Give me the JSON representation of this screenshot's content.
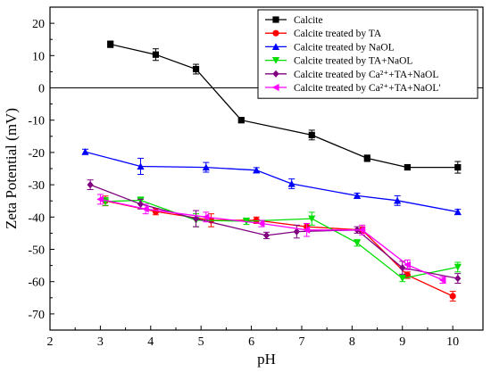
{
  "chart_data": {
    "type": "line",
    "xlabel": "pH",
    "ylabel": "Zeta Potential (mV)",
    "xlim": [
      2,
      10.6
    ],
    "ylim": [
      -75,
      25
    ],
    "xticks": [
      2,
      3,
      4,
      5,
      6,
      7,
      8,
      9,
      10
    ],
    "yticks": [
      20,
      10,
      0,
      -10,
      -20,
      -30,
      -40,
      -50,
      -60,
      -70
    ],
    "zero_line": true,
    "legend_position": "top-right",
    "series": [
      {
        "name": "Calcite",
        "color": "#000000",
        "marker": "square",
        "x": [
          3.2,
          4.1,
          4.9,
          5.8,
          7.2,
          8.3,
          9.1,
          10.1
        ],
        "y": [
          13.5,
          10.3,
          5.8,
          -10.0,
          -14.6,
          -21.8,
          -24.6,
          -24.6
        ],
        "err": [
          1.0,
          1.8,
          1.5,
          0.8,
          1.5,
          1.0,
          0.8,
          1.8
        ]
      },
      {
        "name": "Calcite treated by TA",
        "color": "#ff0000",
        "marker": "circle",
        "x": [
          3.1,
          4.1,
          5.2,
          6.1,
          7.1,
          8.2,
          9.1,
          10.0
        ],
        "y": [
          -35.0,
          -38.3,
          -41.0,
          -41.0,
          -43.0,
          -44.0,
          -58.0,
          -64.5
        ],
        "err": [
          1.5,
          1.0,
          2.0,
          1.0,
          1.0,
          1.0,
          1.0,
          1.5
        ]
      },
      {
        "name": "Calcite treated by NaOL",
        "color": "#0000ff",
        "marker": "triangle-up",
        "x": [
          2.7,
          3.8,
          5.1,
          6.1,
          6.8,
          8.1,
          8.9,
          10.1
        ],
        "y": [
          -19.8,
          -24.3,
          -24.6,
          -25.5,
          -29.7,
          -33.4,
          -34.9,
          -38.4
        ],
        "err": [
          0.8,
          2.5,
          1.5,
          0.8,
          1.5,
          0.8,
          1.5,
          0.8
        ]
      },
      {
        "name": "Calcite treated by TA+NaOL",
        "color": "#00dd00",
        "marker": "triangle-down",
        "x": [
          3.1,
          3.8,
          4.9,
          5.9,
          7.2,
          8.1,
          9.0,
          10.1
        ],
        "y": [
          -35.2,
          -34.8,
          -41.0,
          -41.3,
          -40.5,
          -48.0,
          -59.0,
          -55.5
        ],
        "err": [
          1.2,
          1.0,
          2.0,
          1.0,
          2.0,
          1.0,
          1.0,
          1.5
        ]
      },
      {
        "name": "Calcite treated by Ca²⁺+TA+NaOL",
        "color": "#800080",
        "marker": "diamond",
        "x": [
          2.8,
          3.8,
          4.9,
          6.3,
          6.9,
          8.1,
          9.0,
          10.1
        ],
        "y": [
          -30.0,
          -36.0,
          -40.5,
          -45.7,
          -44.5,
          -44.0,
          -55.7,
          -59.0
        ],
        "err": [
          1.5,
          1.5,
          2.5,
          1.0,
          2.0,
          1.0,
          2.0,
          1.5
        ]
      },
      {
        "name": "Calcite treated by Ca²⁺+TA+NaOL′",
        "color": "#ff00ff",
        "marker": "triangle-left",
        "x": [
          3.0,
          3.9,
          5.1,
          6.2,
          7.1,
          8.2,
          9.1,
          9.8
        ],
        "y": [
          -34.5,
          -37.5,
          -40.0,
          -42.0,
          -44.0,
          -44.0,
          -54.8,
          -59.5
        ],
        "err": [
          1.5,
          1.5,
          1.5,
          1.0,
          2.0,
          1.5,
          1.5,
          1.0
        ]
      }
    ]
  }
}
